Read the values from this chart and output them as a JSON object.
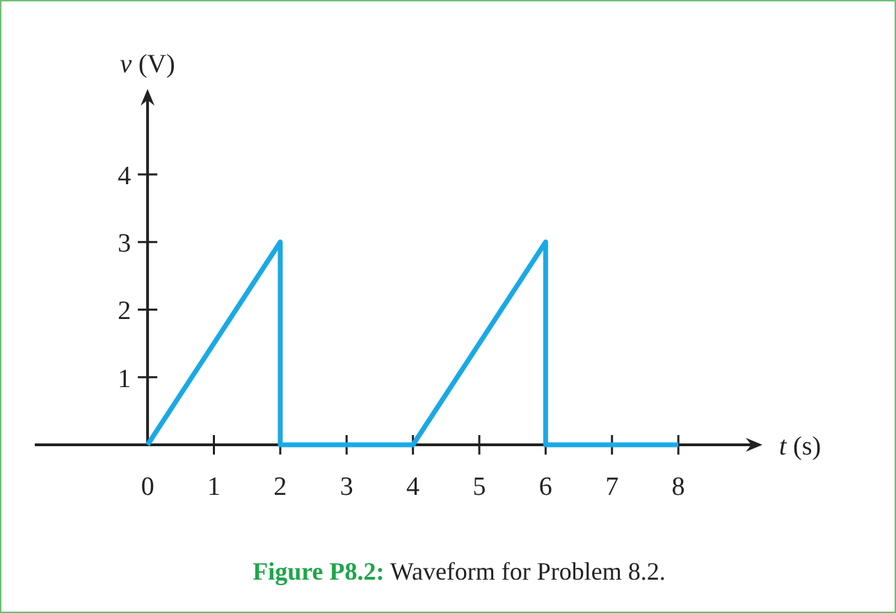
{
  "chart_data": {
    "type": "line",
    "xlabel": "t (s)",
    "ylabel": "v (V)",
    "x": [
      0,
      2,
      2,
      4,
      6,
      6,
      8
    ],
    "series": [
      {
        "color": "#1aa9e6",
        "values": [
          0,
          3,
          0,
          0,
          3,
          0,
          0
        ]
      }
    ],
    "xlim": [
      -1.7,
      9.1
    ],
    "ylim": [
      0,
      5.1
    ],
    "xticks": [
      0,
      1,
      2,
      3,
      4,
      5,
      6,
      7,
      8
    ],
    "yticks": [
      1,
      2,
      3,
      4
    ],
    "grid": false,
    "marker": "none",
    "line_style": "solid",
    "annotations": [
      "Figure P8.2: Waveform for Problem 8.2."
    ]
  }
}
